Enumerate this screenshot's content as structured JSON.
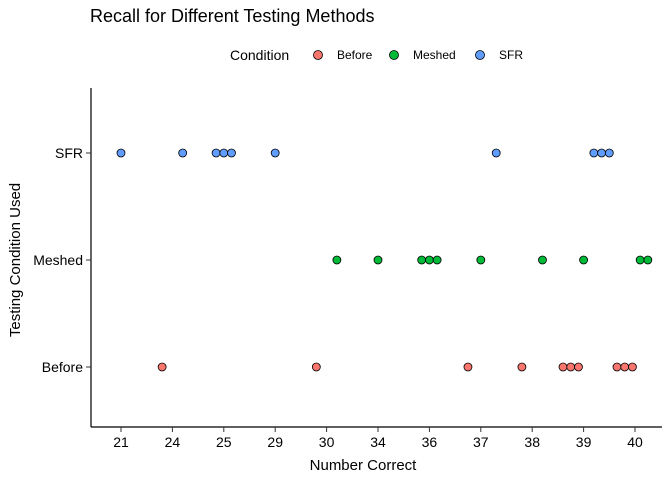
{
  "chart_data": {
    "type": "scatter",
    "title": "Recall for Different Testing Methods",
    "xlabel": "Number Correct",
    "ylabel": "Testing Condition Used",
    "x_ticks": [
      "21",
      "24",
      "25",
      "29",
      "30",
      "34",
      "36",
      "37",
      "38",
      "39",
      "40"
    ],
    "y_categories": [
      "Before",
      "Meshed",
      "SFR"
    ],
    "legend": {
      "title": "Condition",
      "placement": "top",
      "entries": [
        {
          "name": "Before",
          "color": "#F8766D"
        },
        {
          "name": "Meshed",
          "color": "#00BA38"
        },
        {
          "name": "SFR",
          "color": "#619CFF"
        }
      ]
    },
    "grid": false,
    "series": [
      {
        "name": "SFR",
        "color": "#619CFF",
        "x": [
          0,
          1.2,
          1.85,
          2.0,
          2.15,
          3.0,
          7.3,
          9.2,
          9.35,
          9.5
        ]
      },
      {
        "name": "Meshed",
        "color": "#00BA38",
        "x": [
          4.2,
          5.0,
          5.85,
          6.0,
          6.15,
          7.0,
          8.2,
          9.0,
          10.1,
          10.25
        ]
      },
      {
        "name": "Before",
        "color": "#F8766D",
        "x": [
          0.8,
          3.8,
          6.75,
          7.8,
          8.6,
          8.75,
          8.9,
          9.65,
          9.8,
          9.95
        ]
      }
    ]
  }
}
